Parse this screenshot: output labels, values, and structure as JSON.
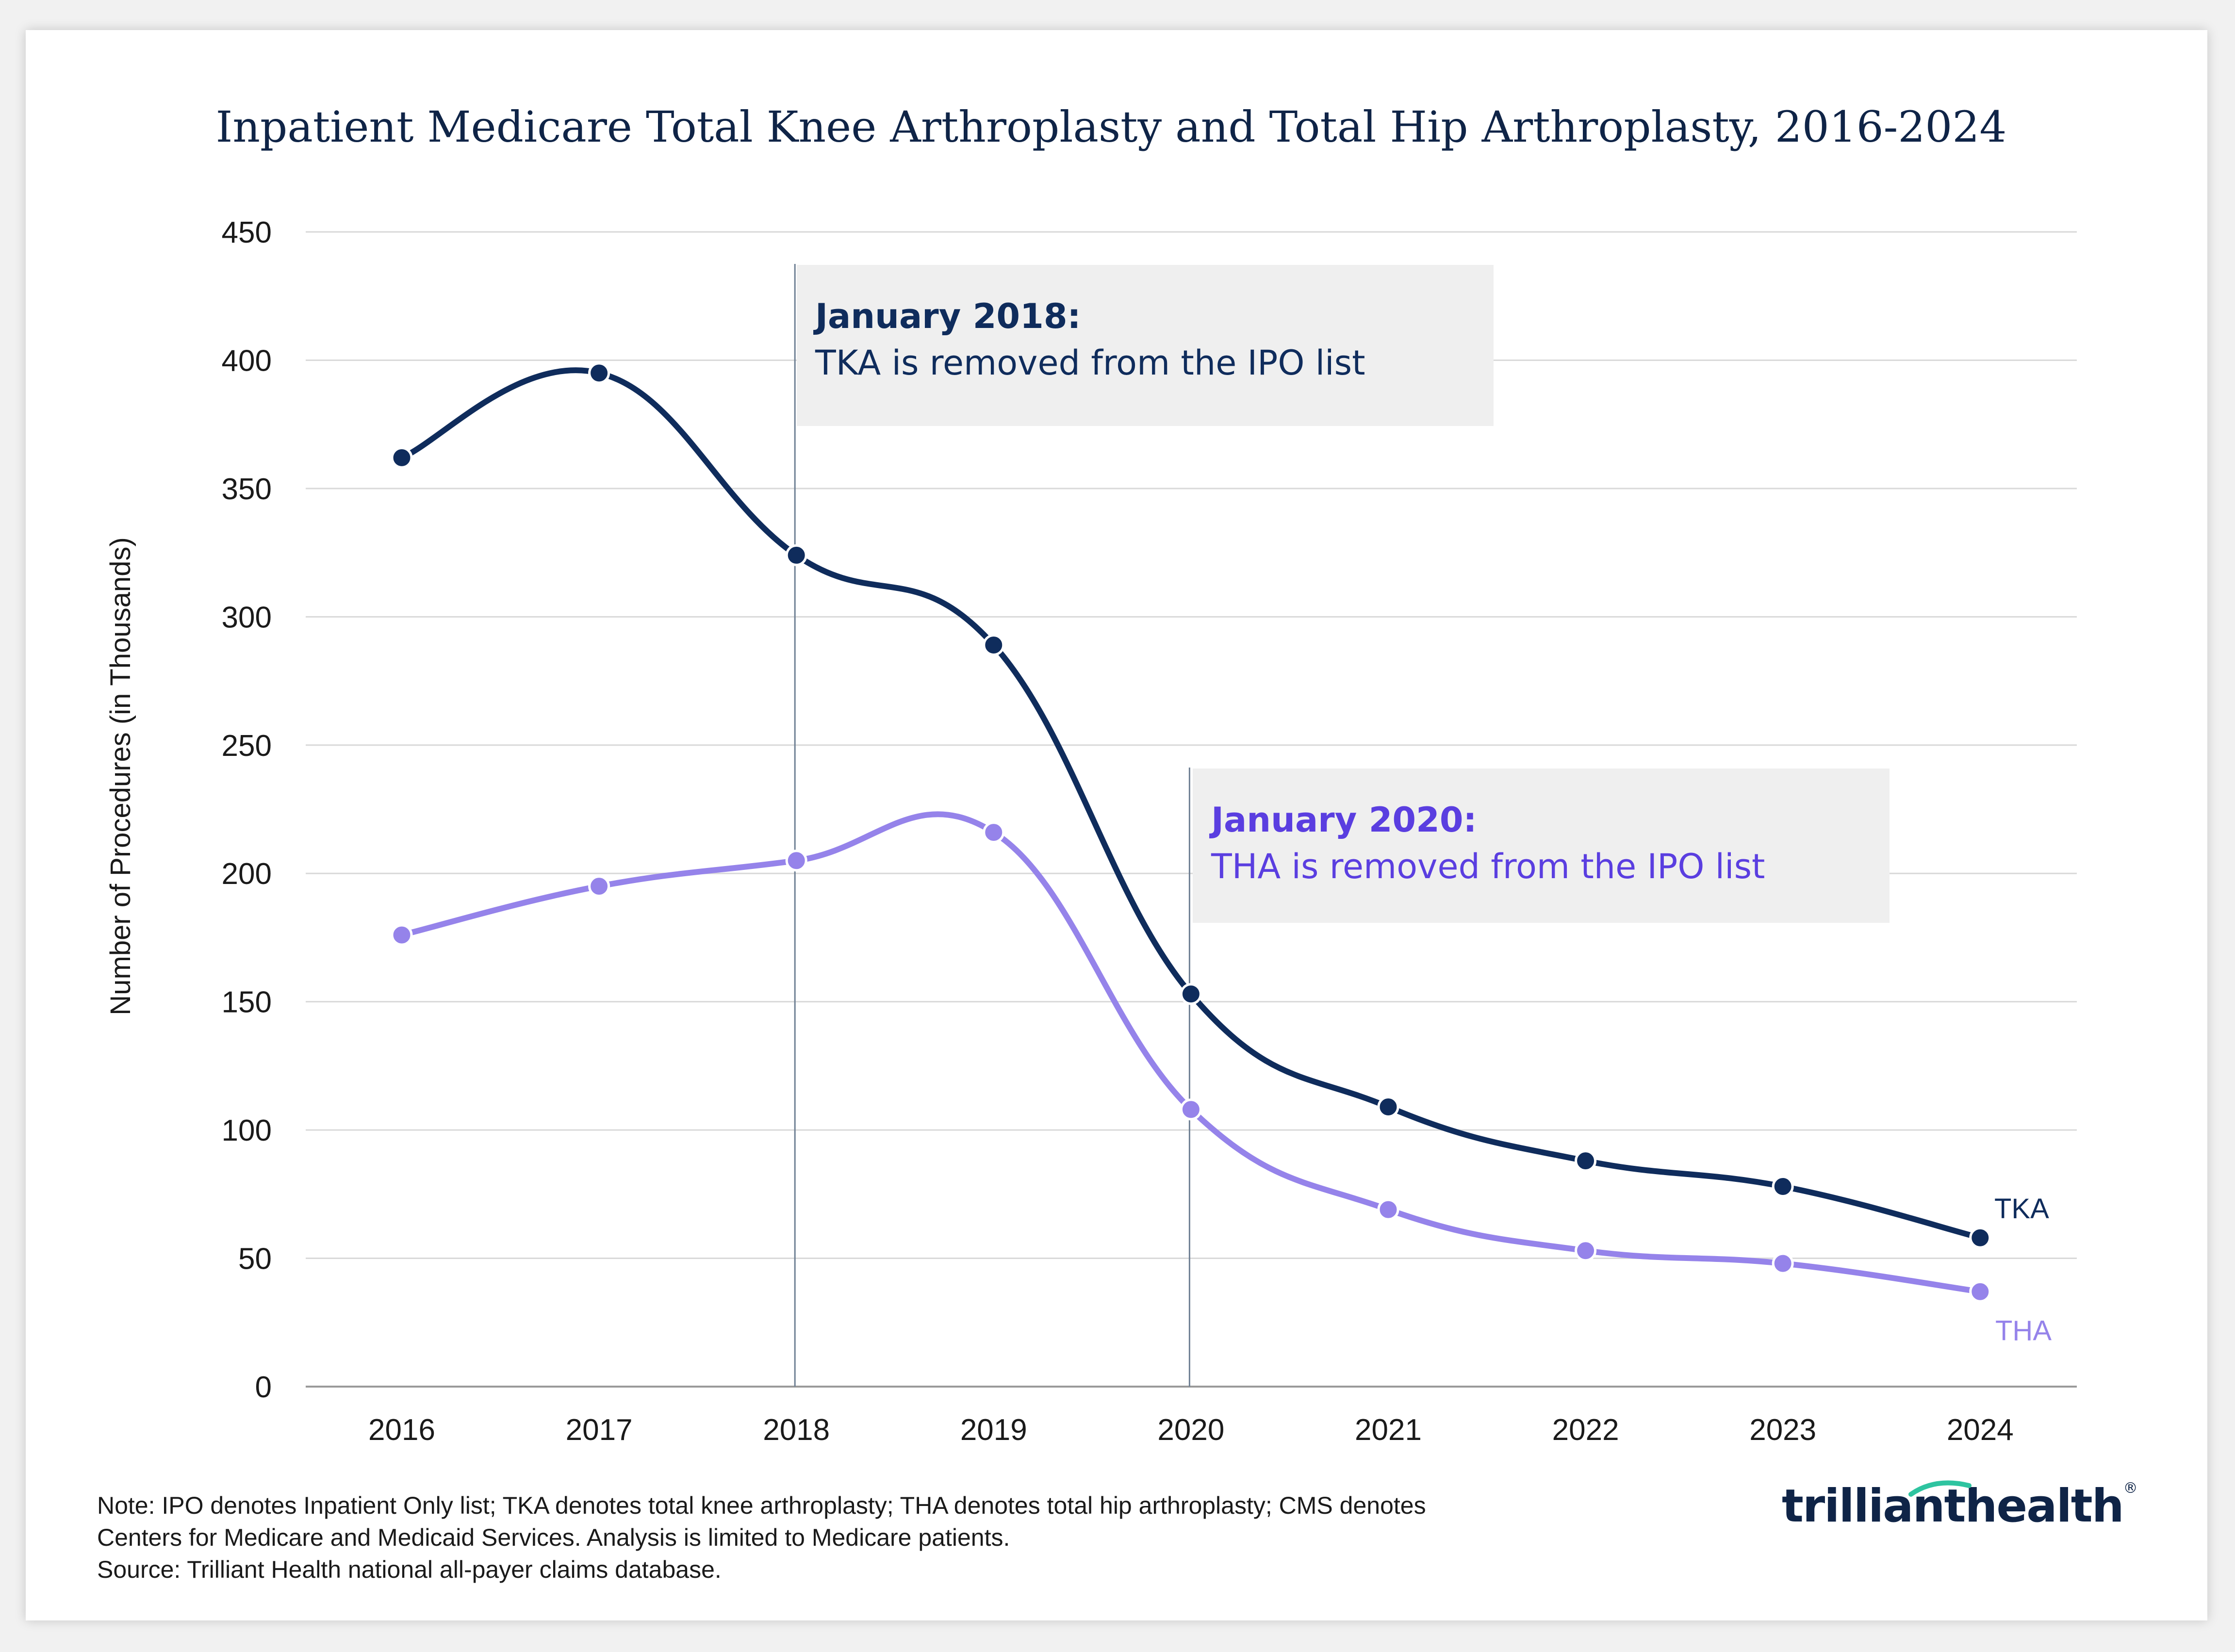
{
  "chart_data": {
    "type": "line",
    "title": "Inpatient Medicare Total Knee Arthroplasty and Total Hip Arthroplasty, 2016-2024",
    "xlabel": "",
    "ylabel": "Number of Procedures (in Thousands)",
    "categories": [
      "2016",
      "2017",
      "2018",
      "2019",
      "2020",
      "2021",
      "2022",
      "2023",
      "2024"
    ],
    "ylim": [
      0,
      450
    ],
    "yticks": [
      0,
      50,
      100,
      150,
      200,
      250,
      300,
      350,
      400,
      450
    ],
    "grid": "horizontal",
    "series": [
      {
        "name": "TKA",
        "label": "TKA",
        "color": "#0f2c5c",
        "values": [
          362,
          395,
          324,
          289,
          153,
          109,
          88,
          78,
          58
        ]
      },
      {
        "name": "THA",
        "label": "THA",
        "color": "#9583ea",
        "values": [
          176,
          195,
          205,
          216,
          108,
          69,
          53,
          48,
          37
        ]
      }
    ],
    "annotations": [
      {
        "title": "January 2018:",
        "text": "TKA is removed from the IPO list",
        "x": "2018",
        "color": "#0f2c5c"
      },
      {
        "title": "January 2020:",
        "text": "THA is removed from the IPO list",
        "x": "2020",
        "color": "#5a3ee0"
      }
    ]
  },
  "footer": {
    "note_lines": [
      "Note: IPO denotes Inpatient Only list; TKA denotes total knee arthroplasty; THA denotes total hip arthroplasty; CMS denotes",
      "Centers for Medicare and Medicaid Services. Analysis is limited to Medicare patients.",
      "Source: Trilliant Health national all-payer claims database."
    ],
    "logo_text_1": "trilliant",
    "logo_text_2": "health",
    "logo_reg": "®"
  },
  "colors": {
    "grid": "#d9d9d9",
    "annotation_box": "#efefef",
    "logo_accent": "#2ec4a0"
  }
}
